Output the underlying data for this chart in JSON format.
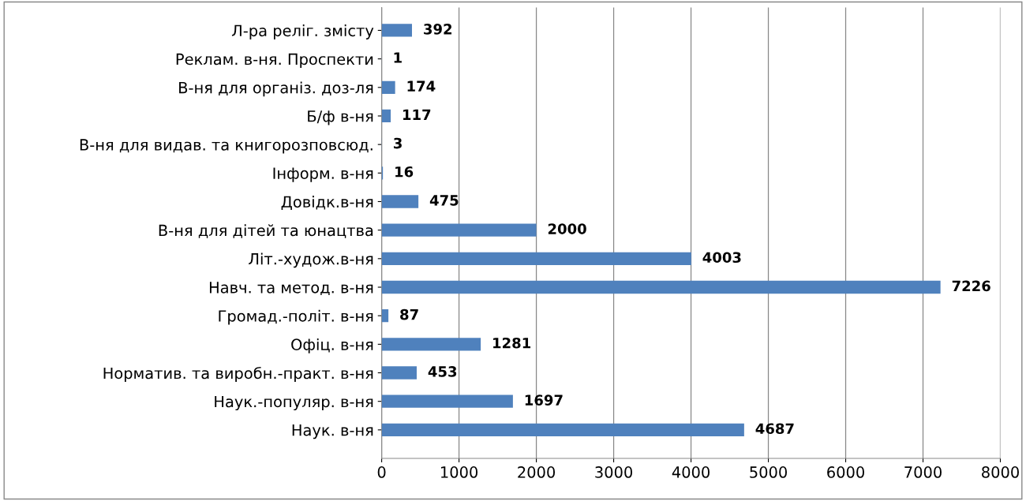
{
  "chart_data": {
    "type": "bar",
    "orientation": "horizontal",
    "categories": [
      "Л-ра реліг. змісту",
      "Реклам. в-ня. Проспекти",
      "В-ня для організ. доз-ля",
      "Б/ф в-ня",
      "В-ня для видав. та книгорозповсюд.",
      "Інформ. в-ня",
      "Довідк.в-ня",
      "В-ня для дітей та юнацтва",
      "Літ.-худож.в-ня",
      "Навч. та метод. в-ня",
      "Громад.-політ. в-ня",
      "Офіц. в-ня",
      "Норматив. та виробн.-практ. в-ня",
      "Наук.-популяр. в-ня",
      "Наук. в-ня"
    ],
    "values": [
      392,
      1,
      174,
      117,
      3,
      16,
      475,
      2000,
      4003,
      7226,
      87,
      1281,
      453,
      1697,
      4687
    ],
    "color": "#4f81bd",
    "xlim": [
      0,
      8000
    ],
    "xticks": [
      0,
      1000,
      2000,
      3000,
      4000,
      5000,
      6000,
      7000,
      8000
    ],
    "grid": "x",
    "data_labels": true,
    "legend": false
  }
}
